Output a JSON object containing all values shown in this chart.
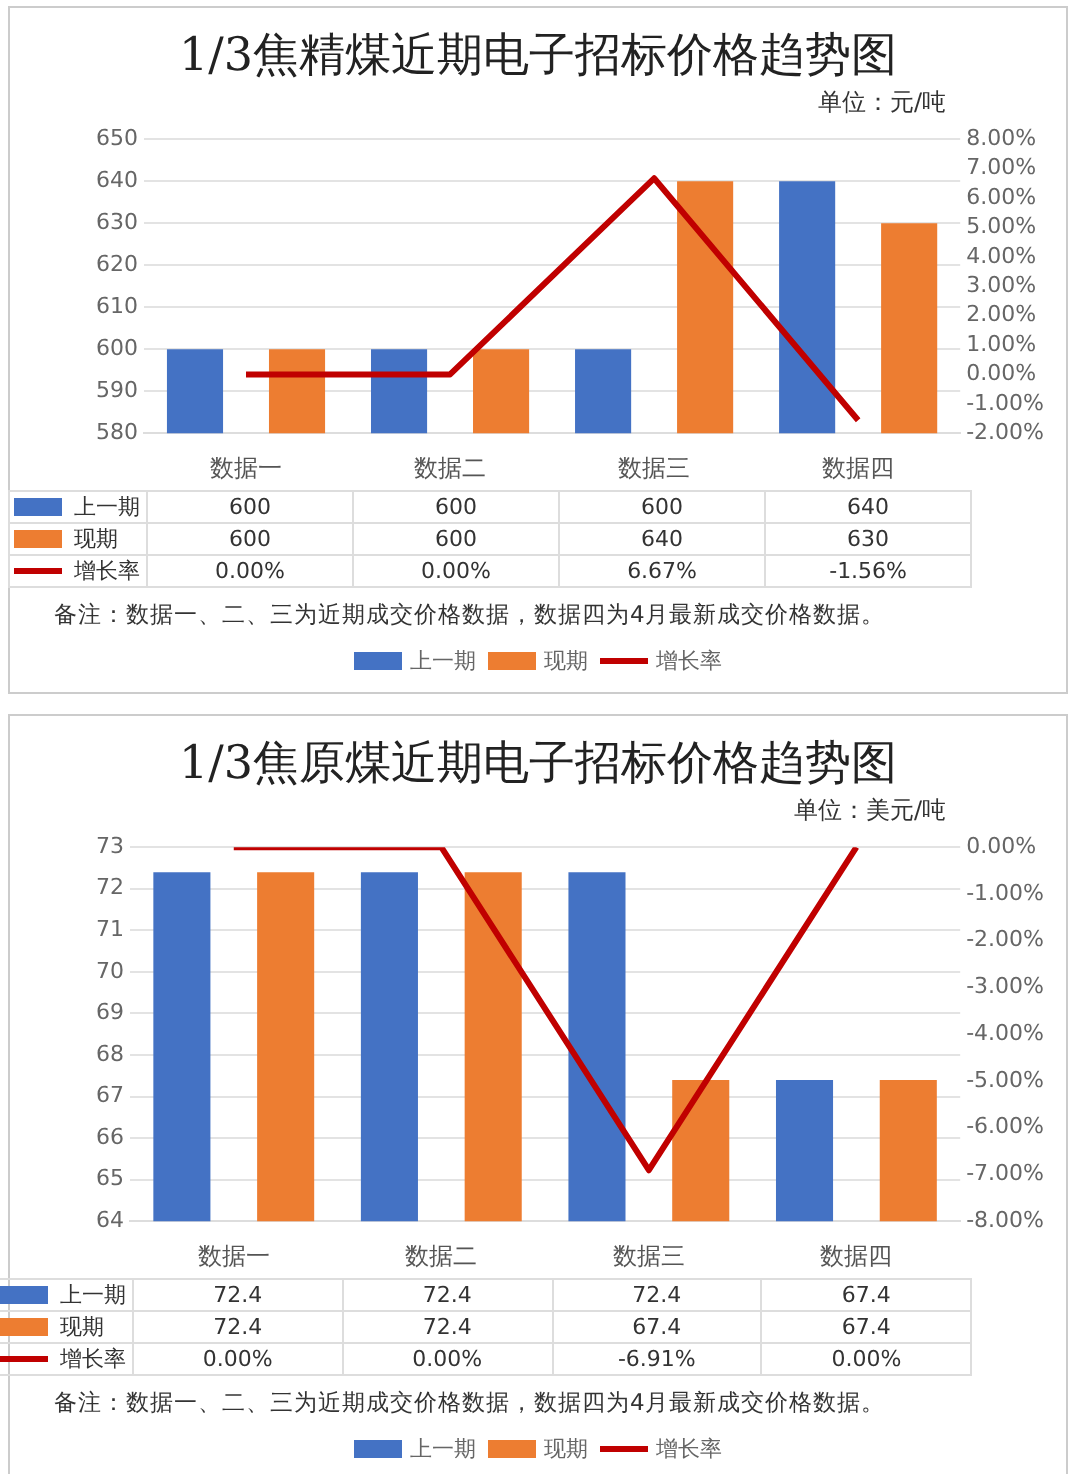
{
  "chart_data": [
    {
      "type": "bar",
      "title": "1/3焦精煤近期电子招标价格趋势图",
      "subtitle": "单位：元/吨",
      "categories": [
        "数据一",
        "数据二",
        "数据三",
        "数据四"
      ],
      "series": [
        {
          "name": "上一期",
          "color": "#4472c4",
          "values": [
            600,
            600,
            600,
            640
          ],
          "value_labels": [
            "600",
            "600",
            "600",
            "640"
          ]
        },
        {
          "name": "现期",
          "color": "#ed7d31",
          "values": [
            600,
            600,
            640,
            630
          ],
          "value_labels": [
            "600",
            "600",
            "640",
            "630"
          ]
        },
        {
          "name": "增长率",
          "type": "line",
          "axis": "y2",
          "color": "#c00000",
          "values": [
            0,
            0,
            6.67,
            -1.56
          ],
          "value_labels": [
            "0.00%",
            "0.00%",
            "6.67%",
            "-1.56%"
          ]
        }
      ],
      "ylim": [
        580,
        650
      ],
      "yticks": [
        580,
        590,
        600,
        610,
        620,
        630,
        640,
        650
      ],
      "y2lim": [
        -2,
        8
      ],
      "y2ticks": [
        {
          "value": -2,
          "label": "-2.00%"
        },
        {
          "value": -1,
          "label": "-1.00%"
        },
        {
          "value": 0,
          "label": "0.00%"
        },
        {
          "value": 1,
          "label": "1.00%"
        },
        {
          "value": 2,
          "label": "2.00%"
        },
        {
          "value": 3,
          "label": "3.00%"
        },
        {
          "value": 4,
          "label": "4.00%"
        },
        {
          "value": 5,
          "label": "5.00%"
        },
        {
          "value": 6,
          "label": "6.00%"
        },
        {
          "value": 7,
          "label": "7.00%"
        },
        {
          "value": 8,
          "label": "8.00%"
        }
      ],
      "grid": "y",
      "legend": "bottom",
      "marker": "none",
      "annotations": [
        "备注：数据一、二、三为近期成交价格数据，数据四为4月最新成交价格数据。"
      ]
    },
    {
      "type": "bar",
      "title": "1/3焦原煤近期电子招标价格趋势图",
      "subtitle": "单位：美元/吨",
      "categories": [
        "数据一",
        "数据二",
        "数据三",
        "数据四"
      ],
      "series": [
        {
          "name": "上一期",
          "color": "#4472c4",
          "values": [
            72.4,
            72.4,
            72.4,
            67.4
          ],
          "value_labels": [
            "72.4",
            "72.4",
            "72.4",
            "67.4"
          ]
        },
        {
          "name": "现期",
          "color": "#ed7d31",
          "values": [
            72.4,
            72.4,
            67.4,
            67.4
          ],
          "value_labels": [
            "72.4",
            "72.4",
            "67.4",
            "67.4"
          ]
        },
        {
          "name": "增长率",
          "type": "line",
          "axis": "y2",
          "color": "#c00000",
          "values": [
            0,
            0,
            -6.91,
            0
          ],
          "value_labels": [
            "0.00%",
            "0.00%",
            "-6.91%",
            "0.00%"
          ]
        }
      ],
      "ylim": [
        64,
        73
      ],
      "yticks": [
        64,
        65,
        66,
        67,
        68,
        69,
        70,
        71,
        72,
        73
      ],
      "y2lim": [
        -8,
        0
      ],
      "y2ticks": [
        {
          "value": -8,
          "label": "-8.00%"
        },
        {
          "value": -7,
          "label": "-7.00%"
        },
        {
          "value": -6,
          "label": "-6.00%"
        },
        {
          "value": -5,
          "label": "-5.00%"
        },
        {
          "value": -4,
          "label": "-4.00%"
        },
        {
          "value": -3,
          "label": "-3.00%"
        },
        {
          "value": -2,
          "label": "-2.00%"
        },
        {
          "value": -1,
          "label": "-1.00%"
        },
        {
          "value": 0,
          "label": "0.00%"
        }
      ],
      "grid": "y",
      "legend": "bottom",
      "marker": "none",
      "annotations": [
        "备注：数据一、二、三为近期成交价格数据，数据四为4月最新成交价格数据。"
      ]
    }
  ]
}
